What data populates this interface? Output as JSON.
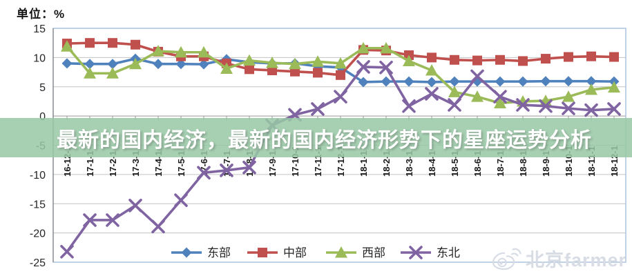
{
  "chart": {
    "unit_label": "单位：%"
  },
  "banner": {
    "text": "最新的国内经济，最新的国内经济形势下的星座运势分析"
  },
  "watermark": {
    "icon": "weibo-icon",
    "text": "北京farmer"
  },
  "chart_data": {
    "type": "line",
    "title": "",
    "xlabel": "",
    "ylabel": "单位：%",
    "grid": true,
    "legend_position": "bottom",
    "x_categories": [
      "16-12-1",
      "17-1-1",
      "17-2-1",
      "17-3-1",
      "17-4-1",
      "17-5-1",
      "17-6-1",
      "17-7-1",
      "17-8-1",
      "17-9-1",
      "17-10-1",
      "17-11-1",
      "17-12-1",
      "18-1-1",
      "18-2-1",
      "18-3-1",
      "18-4-1",
      "18-5-1",
      "18-6-1",
      "18-7-1",
      "18-8-1",
      "18-9-1",
      "18-10-1",
      "18-11-1",
      "18-12-1"
    ],
    "y_axis": {
      "min": -25,
      "max": 15,
      "step": 5,
      "ticks": [
        15,
        10,
        5,
        0,
        -5,
        -10,
        -15,
        -20,
        -25
      ]
    },
    "series": [
      {
        "id": "east",
        "name": "东部",
        "color": "#4F81BD",
        "marker": "diamond",
        "values": [
          9.0,
          8.9,
          8.9,
          9.8,
          8.9,
          8.9,
          8.85,
          9.7,
          9.2,
          9.0,
          9.0,
          8.5,
          8.3,
          5.8,
          5.9,
          5.9,
          5.8,
          5.9,
          5.9,
          5.9,
          5.9,
          5.95,
          5.95,
          5.95,
          5.9
        ]
      },
      {
        "id": "center",
        "name": "中部",
        "color": "#C0504D",
        "marker": "square",
        "values": [
          12.4,
          12.5,
          12.5,
          12.2,
          11.0,
          10.2,
          10.2,
          9.0,
          8.0,
          7.8,
          7.6,
          7.4,
          7.0,
          11.3,
          11.2,
          10.4,
          10.0,
          9.6,
          9.5,
          9.6,
          9.4,
          9.8,
          10.1,
          10.2,
          10.1
        ]
      },
      {
        "id": "west",
        "name": "西部",
        "color": "#9BBB59",
        "marker": "triangle",
        "values": [
          11.9,
          7.3,
          7.3,
          8.9,
          11.1,
          10.9,
          10.9,
          8.1,
          9.5,
          9.1,
          8.9,
          9.3,
          9.0,
          11.6,
          11.6,
          9.4,
          7.8,
          4.1,
          3.3,
          2.2,
          2.5,
          2.6,
          3.3,
          4.5,
          4.9
        ]
      },
      {
        "id": "northeast",
        "name": "东北",
        "color": "#8064A2",
        "marker": "x",
        "values": [
          -23.2,
          -17.8,
          -17.8,
          -15.3,
          -18.9,
          -14.4,
          -9.7,
          -9.3,
          -8.8,
          -1.6,
          0.2,
          1.2,
          3.3,
          8.4,
          8.3,
          1.7,
          3.8,
          1.9,
          6.8,
          3.3,
          1.9,
          1.7,
          1.3,
          1.0,
          1.2
        ]
      }
    ],
    "styles": {
      "gridline_color": "#C3C3C3",
      "axis_color": "#7F7F7F",
      "zero_axis_color": "#999999",
      "border_color": "#A6BFDB",
      "label_color": "#262626",
      "x_label_color": "#1A1A1A",
      "banner_bg": "rgba(152,200,164,0.85)",
      "banner_text_color": "#FFFFFF",
      "watermark_color": "#D7DCE5"
    }
  }
}
